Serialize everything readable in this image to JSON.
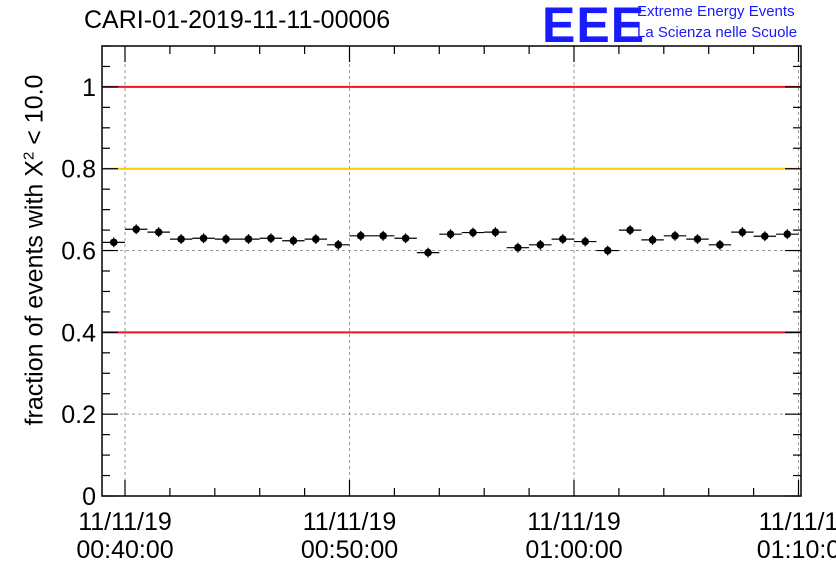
{
  "title": "CARI-01-2019-11-11-00006",
  "logo": {
    "letters": "EEE",
    "line1": "Extreme Energy Events",
    "line2": "La Scienza nelle Scuole",
    "color": "#1a1aff"
  },
  "chart_data": {
    "type": "scatter",
    "title": "CARI-01-2019-11-11-00006",
    "xlabel": "",
    "ylabel_prefix": "fraction of events with X",
    "ylabel_sup": "2",
    "ylabel_suffix": " < 10.0",
    "xlim_minutes": [
      -1,
      29
    ],
    "ylim": [
      0,
      1.1
    ],
    "x_ticks": [
      {
        "minute": 0,
        "date": "11/11/19",
        "time": "00:40:00"
      },
      {
        "minute": 10,
        "date": "11/11/19",
        "time": "00:50:00"
      },
      {
        "minute": 20,
        "date": "11/11/19",
        "time": "01:00:00"
      },
      {
        "minute": 30,
        "date": "11/11/1",
        "time": "01:10:0"
      }
    ],
    "y_ticks": [
      {
        "value": 0,
        "label": "0"
      },
      {
        "value": 0.2,
        "label": "0.2"
      },
      {
        "value": 0.4,
        "label": "0.4"
      },
      {
        "value": 0.6,
        "label": "0.6"
      },
      {
        "value": 0.8,
        "label": "0.8"
      },
      {
        "value": 1.0,
        "label": "1"
      }
    ],
    "reference_lines": [
      {
        "value": 1.0,
        "color": "#e8141e"
      },
      {
        "value": 0.8,
        "color": "#ffcc00"
      },
      {
        "value": 0.4,
        "color": "#e8141e"
      }
    ],
    "series": [
      {
        "name": "fraction",
        "bin_minutes": 1,
        "x_start_minutes": -0.5,
        "values": [
          0.62,
          0.652,
          0.645,
          0.628,
          0.63,
          0.628,
          0.628,
          0.63,
          0.624,
          0.628,
          0.614,
          0.636,
          0.636,
          0.63,
          0.595,
          0.64,
          0.644,
          0.645,
          0.607,
          0.614,
          0.628,
          0.622,
          0.6,
          0.65,
          0.626,
          0.636,
          0.628,
          0.614,
          0.645,
          0.635,
          0.64
        ],
        "error": 0.012
      }
    ]
  }
}
